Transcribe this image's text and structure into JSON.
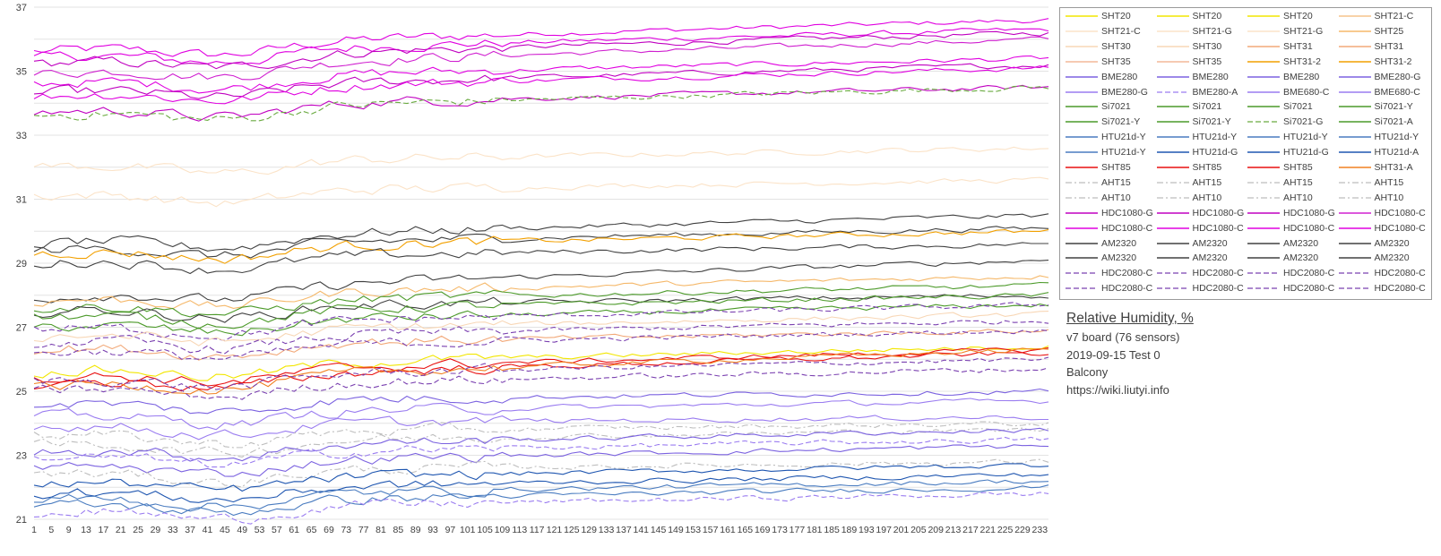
{
  "info": {
    "title": "Relative Humidity, %",
    "lines": [
      "v7 board (76 sensors)",
      "2019-09-15 Test 0",
      "Balcony",
      "https://wiki.liutyi.info"
    ]
  },
  "legend_entries": [
    {
      "label": "SHT20",
      "color": "#f2e600",
      "dash": "solid"
    },
    {
      "label": "SHT20",
      "color": "#f2e600",
      "dash": "solid"
    },
    {
      "label": "SHT20",
      "color": "#f2e600",
      "dash": "solid"
    },
    {
      "label": "SHT21-C",
      "color": "#f5c48c",
      "dash": "solid"
    },
    {
      "label": "SHT21-C",
      "color": "#fbe3c8",
      "dash": "solid"
    },
    {
      "label": "SHT21-G",
      "color": "#fbe3c8",
      "dash": "solid"
    },
    {
      "label": "SHT21-G",
      "color": "#fbe3c8",
      "dash": "solid"
    },
    {
      "label": "SHT25",
      "color": "#f5b86a",
      "dash": "solid"
    },
    {
      "label": "SHT30",
      "color": "#f8d7b6",
      "dash": "solid"
    },
    {
      "label": "SHT30",
      "color": "#f8d7b6",
      "dash": "solid"
    },
    {
      "label": "SHT31",
      "color": "#f2a878",
      "dash": "solid"
    },
    {
      "label": "SHT31",
      "color": "#f2a878",
      "dash": "solid"
    },
    {
      "label": "SHT35",
      "color": "#f3b898",
      "dash": "solid"
    },
    {
      "label": "SHT35",
      "color": "#f3b898",
      "dash": "solid"
    },
    {
      "label": "SHT31-2",
      "color": "#f2a000",
      "dash": "solid"
    },
    {
      "label": "SHT31-2",
      "color": "#f2a000",
      "dash": "solid"
    },
    {
      "label": "BME280",
      "color": "#7b62e0",
      "dash": "solid"
    },
    {
      "label": "BME280",
      "color": "#7b62e0",
      "dash": "solid"
    },
    {
      "label": "BME280",
      "color": "#7b62e0",
      "dash": "solid"
    },
    {
      "label": "BME280-G",
      "color": "#7b62e0",
      "dash": "solid"
    },
    {
      "label": "BME280-G",
      "color": "#9a7cf0",
      "dash": "solid"
    },
    {
      "label": "BME280-A",
      "color": "#9a7cf0",
      "dash": "dash"
    },
    {
      "label": "BME680-C",
      "color": "#9a7cf0",
      "dash": "solid"
    },
    {
      "label": "BME680-C",
      "color": "#9a7cf0",
      "dash": "solid"
    },
    {
      "label": "Si7021",
      "color": "#4c9a2a",
      "dash": "solid"
    },
    {
      "label": "Si7021",
      "color": "#4c9a2a",
      "dash": "solid"
    },
    {
      "label": "Si7021",
      "color": "#4c9a2a",
      "dash": "solid"
    },
    {
      "label": "Si7021-Y",
      "color": "#4c9a2a",
      "dash": "solid"
    },
    {
      "label": "Si7021-Y",
      "color": "#4c9a2a",
      "dash": "solid"
    },
    {
      "label": "Si7021-Y",
      "color": "#4c9a2a",
      "dash": "solid"
    },
    {
      "label": "Si7021-G",
      "color": "#6aaa40",
      "dash": "dash"
    },
    {
      "label": "Si7021-A",
      "color": "#4c9a2a",
      "dash": "solid"
    },
    {
      "label": "HTU21d-Y",
      "color": "#4a7cc0",
      "dash": "solid"
    },
    {
      "label": "HTU21d-Y",
      "color": "#4a7cc0",
      "dash": "solid"
    },
    {
      "label": "HTU21d-Y",
      "color": "#4a7cc0",
      "dash": "solid"
    },
    {
      "label": "HTU21d-Y",
      "color": "#4a7cc0",
      "dash": "solid"
    },
    {
      "label": "HTU21d-Y",
      "color": "#4a7cc0",
      "dash": "solid"
    },
    {
      "label": "HTU21d-G",
      "color": "#1f56b0",
      "dash": "solid"
    },
    {
      "label": "HTU21d-G",
      "color": "#1f56b0",
      "dash": "solid"
    },
    {
      "label": "HTU21d-A",
      "color": "#1f56b0",
      "dash": "solid"
    },
    {
      "label": "SHT85",
      "color": "#e81010",
      "dash": "solid"
    },
    {
      "label": "SHT85",
      "color": "#e81010",
      "dash": "solid"
    },
    {
      "label": "SHT85",
      "color": "#e81010",
      "dash": "solid"
    },
    {
      "label": "SHT31-A",
      "color": "#f08020",
      "dash": "solid"
    },
    {
      "label": "AHT15",
      "color": "#bdbdbd",
      "dash": "dashdot"
    },
    {
      "label": "AHT15",
      "color": "#bdbdbd",
      "dash": "dashdot"
    },
    {
      "label": "AHT15",
      "color": "#bdbdbd",
      "dash": "dashdot"
    },
    {
      "label": "AHT15",
      "color": "#bdbdbd",
      "dash": "dashdot"
    },
    {
      "label": "AHT10",
      "color": "#bdbdbd",
      "dash": "dashdot"
    },
    {
      "label": "AHT10",
      "color": "#bdbdbd",
      "dash": "dashdot"
    },
    {
      "label": "AHT10",
      "color": "#bdbdbd",
      "dash": "dashdot"
    },
    {
      "label": "AHT10",
      "color": "#bdbdbd",
      "dash": "dashdot"
    },
    {
      "label": "HDC1080-G",
      "color": "#c000c0",
      "dash": "solid"
    },
    {
      "label": "HDC1080-G",
      "color": "#c000c0",
      "dash": "solid"
    },
    {
      "label": "HDC1080-G",
      "color": "#c000c0",
      "dash": "solid"
    },
    {
      "label": "HDC1080-C",
      "color": "#d020d0",
      "dash": "solid"
    },
    {
      "label": "HDC1080-C",
      "color": "#e000e0",
      "dash": "solid"
    },
    {
      "label": "HDC1080-C",
      "color": "#e000e0",
      "dash": "solid"
    },
    {
      "label": "HDC1080-C",
      "color": "#e000e0",
      "dash": "solid"
    },
    {
      "label": "HDC1080-C",
      "color": "#e000e0",
      "dash": "solid"
    },
    {
      "label": "AM2320",
      "color": "#404040",
      "dash": "solid"
    },
    {
      "label": "AM2320",
      "color": "#404040",
      "dash": "solid"
    },
    {
      "label": "AM2320",
      "color": "#404040",
      "dash": "solid"
    },
    {
      "label": "AM2320",
      "color": "#404040",
      "dash": "solid"
    },
    {
      "label": "AM2320",
      "color": "#404040",
      "dash": "solid"
    },
    {
      "label": "AM2320",
      "color": "#404040",
      "dash": "solid"
    },
    {
      "label": "AM2320",
      "color": "#404040",
      "dash": "solid"
    },
    {
      "label": "AM2320",
      "color": "#404040",
      "dash": "solid"
    },
    {
      "label": "HDC2080-C",
      "color": "#7a40b0",
      "dash": "dash"
    },
    {
      "label": "HDC2080-C",
      "color": "#7a40b0",
      "dash": "dash"
    },
    {
      "label": "HDC2080-C",
      "color": "#7a40b0",
      "dash": "dash"
    },
    {
      "label": "HDC2080-C",
      "color": "#7a40b0",
      "dash": "dash"
    },
    {
      "label": "HDC2080-C",
      "color": "#7a40b0",
      "dash": "dash"
    },
    {
      "label": "HDC2080-C",
      "color": "#7a40b0",
      "dash": "dash"
    },
    {
      "label": "HDC2080-C",
      "color": "#7a40b0",
      "dash": "dash"
    },
    {
      "label": "HDC2080-C",
      "color": "#7a40b0",
      "dash": "dash"
    }
  ],
  "chart_data": {
    "type": "line",
    "title": "Relative Humidity, %",
    "x_range": [
      1,
      235
    ],
    "x_ticks": [
      1,
      5,
      9,
      13,
      17,
      21,
      25,
      29,
      33,
      37,
      41,
      45,
      49,
      53,
      57,
      61,
      65,
      69,
      73,
      77,
      81,
      85,
      89,
      93,
      97,
      101,
      105,
      109,
      113,
      117,
      121,
      125,
      129,
      133,
      137,
      141,
      145,
      149,
      153,
      157,
      161,
      165,
      169,
      173,
      177,
      181,
      185,
      189,
      193,
      197,
      201,
      205,
      209,
      213,
      217,
      221,
      225,
      229,
      233
    ],
    "ylim": [
      21,
      37
    ],
    "y_ticks": [
      21,
      23,
      25,
      27,
      29,
      31,
      33,
      35,
      37
    ],
    "grid": "horizontal",
    "legend_position": "right",
    "series_levels": [
      {
        "sensor": "HDC1080-C",
        "color": "#e000e0",
        "dash": "solid",
        "start": 35.6,
        "end": 36.6
      },
      {
        "sensor": "HDC1080-C",
        "color": "#e000e0",
        "dash": "solid",
        "start": 35.4,
        "end": 36.3
      },
      {
        "sensor": "HDC1080-G",
        "color": "#c000c0",
        "dash": "solid",
        "start": 35.2,
        "end": 36.2
      },
      {
        "sensor": "HDC1080-C",
        "color": "#d020d0",
        "dash": "solid",
        "start": 34.9,
        "end": 36.0
      },
      {
        "sensor": "HDC1080-C",
        "color": "#e000e0",
        "dash": "solid",
        "start": 34.6,
        "end": 35.4
      },
      {
        "sensor": "HDC1080-G",
        "color": "#c000c0",
        "dash": "solid",
        "start": 34.3,
        "end": 35.2
      },
      {
        "sensor": "HDC1080-C",
        "color": "#e000e0",
        "dash": "solid",
        "start": 34.2,
        "end": 35.1
      },
      {
        "sensor": "HDC1080-G",
        "color": "#c000c0",
        "dash": "solid",
        "start": 33.7,
        "end": 34.5
      },
      {
        "sensor": "Si7021-G",
        "color": "#6aaa40",
        "dash": "dash",
        "start": 33.6,
        "end": 34.5
      },
      {
        "sensor": "SHT21-C",
        "color": "#fbe3c8",
        "dash": "solid",
        "start": 32.0,
        "end": 32.6
      },
      {
        "sensor": "SHT21-G",
        "color": "#fbe3c8",
        "dash": "solid",
        "start": 31.1,
        "end": 31.6
      },
      {
        "sensor": "AM2320",
        "color": "#404040",
        "dash": "solid",
        "start": 29.6,
        "end": 30.5
      },
      {
        "sensor": "AM2320",
        "color": "#404040",
        "dash": "solid",
        "start": 29.4,
        "end": 30.1
      },
      {
        "sensor": "SHT31-2",
        "color": "#f2a000",
        "dash": "solid",
        "start": 29.3,
        "end": 30.0
      },
      {
        "sensor": "AM2320",
        "color": "#404040",
        "dash": "solid",
        "start": 29.0,
        "end": 29.6
      },
      {
        "sensor": "AM2320",
        "color": "#404040",
        "dash": "solid",
        "start": 27.9,
        "end": 29.1
      },
      {
        "sensor": "SHT25",
        "color": "#f5b86a",
        "dash": "solid",
        "start": 27.8,
        "end": 28.6
      },
      {
        "sensor": "Si7021",
        "color": "#4c9a2a",
        "dash": "solid",
        "start": 27.6,
        "end": 28.3
      },
      {
        "sensor": "AM2320",
        "color": "#404040",
        "dash": "solid",
        "start": 27.5,
        "end": 28.0
      },
      {
        "sensor": "Si7021-Y",
        "color": "#4c9a2a",
        "dash": "solid",
        "start": 27.3,
        "end": 28.0
      },
      {
        "sensor": "Si7021",
        "color": "#4c9a2a",
        "dash": "solid",
        "start": 27.0,
        "end": 27.7
      },
      {
        "sensor": "HDC2080-C",
        "color": "#7a40b0",
        "dash": "dash",
        "start": 26.9,
        "end": 27.7
      },
      {
        "sensor": "SHT30",
        "color": "#f8d7b6",
        "dash": "solid",
        "start": 26.7,
        "end": 27.4
      },
      {
        "sensor": "HDC2080-C",
        "color": "#7a40b0",
        "dash": "dash",
        "start": 26.5,
        "end": 27.2
      },
      {
        "sensor": "SHT31",
        "color": "#f2a878",
        "dash": "solid",
        "start": 26.3,
        "end": 26.9
      },
      {
        "sensor": "HDC2080-C",
        "color": "#7a40b0",
        "dash": "dash",
        "start": 26.2,
        "end": 26.9
      },
      {
        "sensor": "SHT20",
        "color": "#f2e600",
        "dash": "solid",
        "start": 25.6,
        "end": 26.4
      },
      {
        "sensor": "SHT85",
        "color": "#e81010",
        "dash": "solid",
        "start": 25.4,
        "end": 26.3
      },
      {
        "sensor": "SHT85",
        "color": "#e81010",
        "dash": "solid",
        "start": 25.2,
        "end": 26.2
      },
      {
        "sensor": "SHT31-A",
        "color": "#f08020",
        "dash": "solid",
        "start": 25.1,
        "end": 26.3
      },
      {
        "sensor": "HDC2080-C",
        "color": "#7a40b0",
        "dash": "dash",
        "start": 25.3,
        "end": 26.0
      },
      {
        "sensor": "HDC2080-C",
        "color": "#7a40b0",
        "dash": "dash",
        "start": 25.0,
        "end": 25.7
      },
      {
        "sensor": "BME280",
        "color": "#7b62e0",
        "dash": "solid",
        "start": 24.6,
        "end": 25.0
      },
      {
        "sensor": "BME280-G",
        "color": "#9a7cf0",
        "dash": "solid",
        "start": 24.2,
        "end": 24.7
      },
      {
        "sensor": "BME680-C",
        "color": "#9a7cf0",
        "dash": "solid",
        "start": 23.9,
        "end": 24.2
      },
      {
        "sensor": "AHT15",
        "color": "#bdbdbd",
        "dash": "dashdot",
        "start": 23.6,
        "end": 24.0
      },
      {
        "sensor": "AHT10",
        "color": "#bdbdbd",
        "dash": "dashdot",
        "start": 23.3,
        "end": 23.8
      },
      {
        "sensor": "BME280",
        "color": "#7b62e0",
        "dash": "solid",
        "start": 23.1,
        "end": 23.8
      },
      {
        "sensor": "BME280-A",
        "color": "#9a7cf0",
        "dash": "dash",
        "start": 22.9,
        "end": 23.5
      },
      {
        "sensor": "BME280",
        "color": "#7b62e0",
        "dash": "solid",
        "start": 22.6,
        "end": 23.3
      },
      {
        "sensor": "AHT15",
        "color": "#bdbdbd",
        "dash": "dashdot",
        "start": 22.4,
        "end": 22.8
      },
      {
        "sensor": "HTU21d-G",
        "color": "#1f56b0",
        "dash": "solid",
        "start": 22.1,
        "end": 22.7
      },
      {
        "sensor": "HTU21d-A",
        "color": "#1f56b0",
        "dash": "solid",
        "start": 21.8,
        "end": 22.4
      },
      {
        "sensor": "HTU21d-Y",
        "color": "#4a7cc0",
        "dash": "solid",
        "start": 21.6,
        "end": 22.2
      },
      {
        "sensor": "HTU21d-Y",
        "color": "#4a7cc0",
        "dash": "solid",
        "start": 21.4,
        "end": 22.0
      },
      {
        "sensor": "HDC2080-C",
        "color": "#9a7cf0",
        "dash": "dash",
        "start": 21.2,
        "end": 21.8
      }
    ]
  }
}
